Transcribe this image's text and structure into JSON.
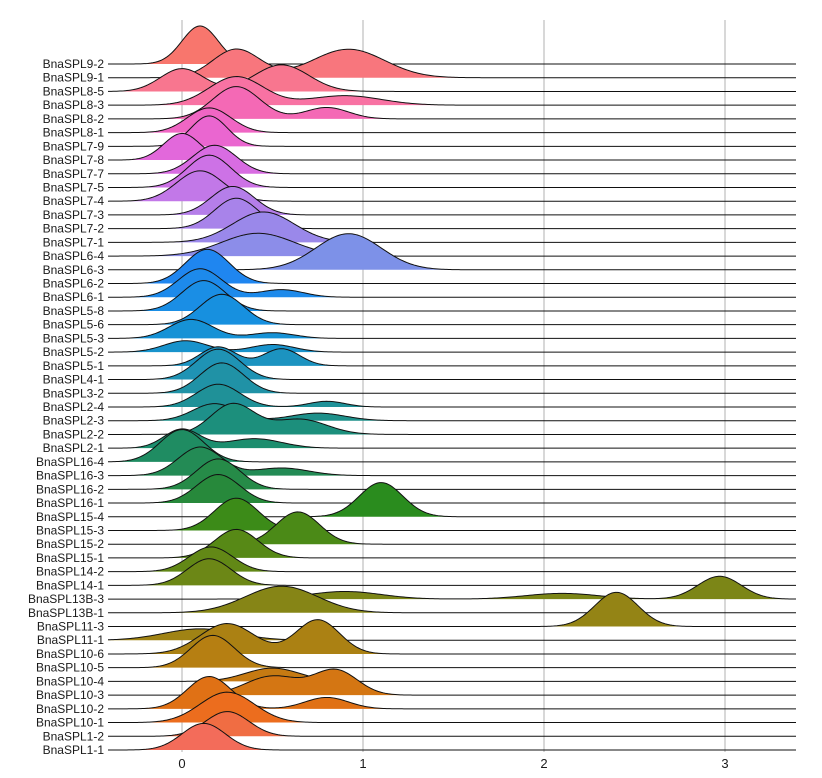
{
  "chart_data": {
    "type": "ridgeline",
    "title": "",
    "xlabel": "",
    "ylabel": "",
    "xlim": [
      -0.45,
      3.4
    ],
    "x_ticks": [
      0,
      1,
      2,
      3
    ],
    "x_tick_labels": [
      "0",
      "1",
      "2",
      "3"
    ],
    "grid": "vertical major lines only",
    "legend": "none",
    "color_scale": "hue ramp from red (bottom) through orange, olive, green, teal, blue, purple, magenta to pink (top)",
    "series": [
      {
        "name": "BnaSPL9-2",
        "color": "#f8766d",
        "components": [
          [
            0.1,
            0.1,
            1.0
          ]
        ]
      },
      {
        "name": "BnaSPL9-1",
        "color": "#f8767d",
        "components": [
          [
            0.3,
            0.13,
            0.75
          ],
          [
            0.92,
            0.2,
            0.75
          ]
        ]
      },
      {
        "name": "BnaSPL8-5",
        "color": "#f8768f",
        "components": [
          [
            0.0,
            0.12,
            0.6
          ],
          [
            0.55,
            0.15,
            0.7
          ]
        ]
      },
      {
        "name": "BnaSPL8-3",
        "color": "#f872a3",
        "components": [
          [
            0.3,
            0.15,
            0.75
          ],
          [
            0.9,
            0.2,
            0.25
          ]
        ]
      },
      {
        "name": "BnaSPL8-2",
        "color": "#f469b5",
        "components": [
          [
            0.3,
            0.13,
            0.85
          ],
          [
            0.8,
            0.12,
            0.3
          ]
        ]
      },
      {
        "name": "BnaSPL8-1",
        "color": "#f066c4",
        "components": [
          [
            0.15,
            0.12,
            0.65
          ]
        ]
      },
      {
        "name": "BnaSPL7-9",
        "color": "#ea66d0",
        "components": [
          [
            0.15,
            0.1,
            0.8
          ]
        ]
      },
      {
        "name": "BnaSPL7-8",
        "color": "#e268db",
        "components": [
          [
            0.0,
            0.1,
            0.7
          ]
        ]
      },
      {
        "name": "BnaSPL7-7",
        "color": "#d86ce2",
        "components": [
          [
            0.18,
            0.12,
            0.75
          ]
        ]
      },
      {
        "name": "BnaSPL7-5",
        "color": "#cd72e6",
        "components": [
          [
            0.15,
            0.12,
            0.85
          ]
        ]
      },
      {
        "name": "BnaSPL7-4",
        "color": "#c278e8",
        "components": [
          [
            0.1,
            0.13,
            0.8
          ]
        ]
      },
      {
        "name": "BnaSPL7-3",
        "color": "#b57ee9",
        "components": [
          [
            0.28,
            0.12,
            0.75
          ]
        ]
      },
      {
        "name": "BnaSPL7-2",
        "color": "#a883ea",
        "components": [
          [
            0.3,
            0.12,
            0.8
          ]
        ]
      },
      {
        "name": "BnaSPL7-1",
        "color": "#9a88ea",
        "components": [
          [
            0.45,
            0.17,
            0.8
          ]
        ]
      },
      {
        "name": "BnaSPL6-4",
        "color": "#8c8de9",
        "components": [
          [
            0.42,
            0.2,
            0.6
          ]
        ]
      },
      {
        "name": "BnaSPL6-3",
        "color": "#7d91e8",
        "components": [
          [
            0.92,
            0.18,
            0.95
          ]
        ]
      },
      {
        "name": "BnaSPL6-2",
        "color": "#1f86f0",
        "components": [
          [
            0.14,
            0.12,
            0.9
          ]
        ]
      },
      {
        "name": "BnaSPL6-1",
        "color": "#1d8aeb",
        "components": [
          [
            0.1,
            0.12,
            0.75
          ],
          [
            0.55,
            0.12,
            0.2
          ]
        ]
      },
      {
        "name": "BnaSPL5-8",
        "color": "#1a8ee5",
        "components": [
          [
            0.12,
            0.12,
            0.8
          ]
        ]
      },
      {
        "name": "BnaSPL5-6",
        "color": "#1790df",
        "components": [
          [
            0.22,
            0.12,
            0.8
          ]
        ]
      },
      {
        "name": "BnaSPL5-3",
        "color": "#1692d6",
        "components": [
          [
            0.05,
            0.12,
            0.5
          ],
          [
            0.5,
            0.12,
            0.15
          ]
        ]
      },
      {
        "name": "BnaSPL5-2",
        "color": "#1893cc",
        "components": [
          [
            0.02,
            0.12,
            0.3
          ],
          [
            0.5,
            0.12,
            0.2
          ]
        ]
      },
      {
        "name": "BnaSPL5-1",
        "color": "#1c93c0",
        "components": [
          [
            0.2,
            0.1,
            0.5
          ],
          [
            0.55,
            0.1,
            0.45
          ]
        ]
      },
      {
        "name": "BnaSPL4-1",
        "color": "#1f93b4",
        "components": [
          [
            0.2,
            0.12,
            0.8
          ]
        ]
      },
      {
        "name": "BnaSPL3-2",
        "color": "#2092a6",
        "components": [
          [
            0.22,
            0.12,
            0.8
          ]
        ]
      },
      {
        "name": "BnaSPL2-4",
        "color": "#1f9198",
        "components": [
          [
            0.2,
            0.12,
            0.6
          ],
          [
            0.8,
            0.1,
            0.15
          ]
        ]
      },
      {
        "name": "BnaSPL2-3",
        "color": "#1e908a",
        "components": [
          [
            0.18,
            0.12,
            0.45
          ],
          [
            0.75,
            0.15,
            0.2
          ]
        ]
      },
      {
        "name": "BnaSPL2-2",
        "color": "#1c8f7c",
        "components": [
          [
            0.28,
            0.12,
            0.8
          ],
          [
            0.65,
            0.15,
            0.4
          ]
        ]
      },
      {
        "name": "BnaSPL2-1",
        "color": "#1c8e6e",
        "components": [
          [
            0.0,
            0.1,
            0.5
          ],
          [
            0.4,
            0.15,
            0.25
          ]
        ]
      },
      {
        "name": "BnaSPL16-4",
        "color": "#1f8c62",
        "components": [
          [
            0.0,
            0.12,
            0.85
          ]
        ]
      },
      {
        "name": "BnaSPL16-3",
        "color": "#238b55",
        "components": [
          [
            0.1,
            0.12,
            0.75
          ],
          [
            0.55,
            0.15,
            0.2
          ]
        ]
      },
      {
        "name": "BnaSPL16-2",
        "color": "#268b48",
        "components": [
          [
            0.2,
            0.12,
            0.8
          ]
        ]
      },
      {
        "name": "BnaSPL16-1",
        "color": "#27893b",
        "components": [
          [
            0.2,
            0.12,
            0.75
          ]
        ]
      },
      {
        "name": "BnaSPL15-4",
        "color": "#2a8c1e",
        "components": [
          [
            1.1,
            0.12,
            0.9
          ]
        ]
      },
      {
        "name": "BnaSPL15-3",
        "color": "#3c8b18",
        "components": [
          [
            0.3,
            0.12,
            0.85
          ]
        ]
      },
      {
        "name": "BnaSPL15-2",
        "color": "#4b8a17",
        "components": [
          [
            0.64,
            0.12,
            0.85
          ]
        ]
      },
      {
        "name": "BnaSPL15-1",
        "color": "#578916",
        "components": [
          [
            0.3,
            0.12,
            0.75
          ]
        ]
      },
      {
        "name": "BnaSPL14-2",
        "color": "#628816",
        "components": [
          [
            0.16,
            0.12,
            0.65
          ]
        ]
      },
      {
        "name": "BnaSPL14-1",
        "color": "#6c8716",
        "components": [
          [
            0.15,
            0.12,
            0.7
          ]
        ]
      },
      {
        "name": "BnaSPL13B-3",
        "color": "#7c8617",
        "components": [
          [
            0.9,
            0.2,
            0.2
          ],
          [
            2.1,
            0.2,
            0.15
          ],
          [
            2.97,
            0.12,
            0.6
          ]
        ]
      },
      {
        "name": "BnaSPL13B-1",
        "color": "#868516",
        "components": [
          [
            0.55,
            0.2,
            0.7
          ]
        ]
      },
      {
        "name": "BnaSPL11-3",
        "color": "#948415",
        "components": [
          [
            2.4,
            0.12,
            0.9
          ]
        ]
      },
      {
        "name": "BnaSPL11-1",
        "color": "#a08314",
        "components": [
          [
            0.1,
            0.2,
            0.3
          ]
        ]
      },
      {
        "name": "BnaSPL10-6",
        "color": "#ab8113",
        "components": [
          [
            0.25,
            0.15,
            0.8
          ],
          [
            0.75,
            0.12,
            0.9
          ]
        ]
      },
      {
        "name": "BnaSPL10-5",
        "color": "#b67f12",
        "components": [
          [
            0.17,
            0.12,
            0.85
          ]
        ]
      },
      {
        "name": "BnaSPL10-4",
        "color": "#c67a12",
        "components": [
          [
            0.5,
            0.15,
            0.35
          ]
        ]
      },
      {
        "name": "BnaSPL10-3",
        "color": "#d47613",
        "components": [
          [
            0.5,
            0.15,
            0.5
          ],
          [
            0.85,
            0.12,
            0.65
          ]
        ]
      },
      {
        "name": "BnaSPL10-2",
        "color": "#e07115",
        "components": [
          [
            0.15,
            0.12,
            0.85
          ],
          [
            0.8,
            0.12,
            0.3
          ]
        ]
      },
      {
        "name": "BnaSPL10-1",
        "color": "#ec6d1e",
        "components": [
          [
            0.25,
            0.15,
            0.8
          ]
        ]
      },
      {
        "name": "BnaSPL1-2",
        "color": "#f06d43",
        "components": [
          [
            0.25,
            0.12,
            0.65
          ]
        ]
      },
      {
        "name": "BnaSPL1-1",
        "color": "#f36c5a",
        "components": [
          [
            0.12,
            0.12,
            0.7
          ]
        ]
      }
    ]
  }
}
